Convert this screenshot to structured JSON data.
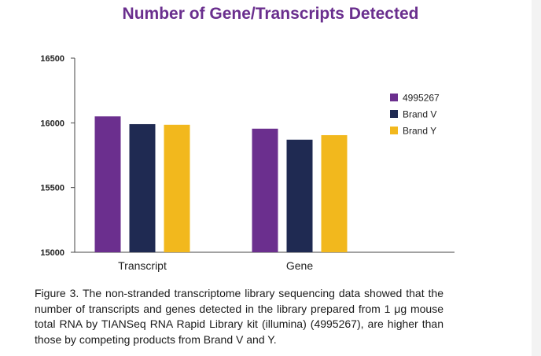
{
  "chart_data": {
    "type": "bar",
    "title": "Number of Gene/Transcripts Detected",
    "xlabel": "",
    "ylabel": "",
    "categories": [
      "Transcript",
      "Gene"
    ],
    "series": [
      {
        "name": "4995267",
        "values": [
          16050,
          15955
        ]
      },
      {
        "name": "Brand V",
        "values": [
          15990,
          15870
        ]
      },
      {
        "name": "Brand Y",
        "values": [
          15985,
          15905
        ]
      }
    ],
    "ylim": [
      15000,
      16500
    ],
    "yticks": [
      15000,
      15500,
      16000,
      16500
    ],
    "grid": false,
    "legend": "right",
    "colors": [
      "#6b2f8e",
      "#1f2a52",
      "#f2b81d"
    ]
  },
  "caption": "Figure 3. The non-stranded transcriptome library sequencing data showed that the number of transcripts and genes detected in the library prepared from 1 μg mouse total RNA by TIANSeq RNA Rapid Library kit (illumina) (4995267), are higher than those by competing products from Brand V and Y."
}
